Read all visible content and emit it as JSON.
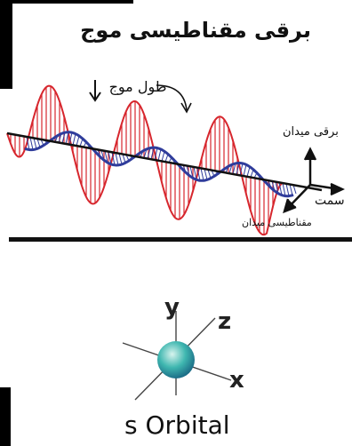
{
  "wave_diagram": {
    "title": "برقی مقناطیسی موج",
    "wavelength_label": "طول موج",
    "electric_field_label": "برقی میدان",
    "magnetic_field_label": "مقناطیسی میدان",
    "direction_label": "سمت",
    "colors": {
      "electric": "#d7262d",
      "magnetic": "#2f3c9b",
      "axis": "#111111"
    }
  },
  "orbital_diagram": {
    "label": "s Orbital",
    "axis_y": "y",
    "axis_z": "z",
    "axis_x": "x",
    "colors": {
      "sphere_center": "#d8f4ee",
      "sphere_mid": "#3fb7b0",
      "sphere_edge": "#1d6f88"
    }
  }
}
